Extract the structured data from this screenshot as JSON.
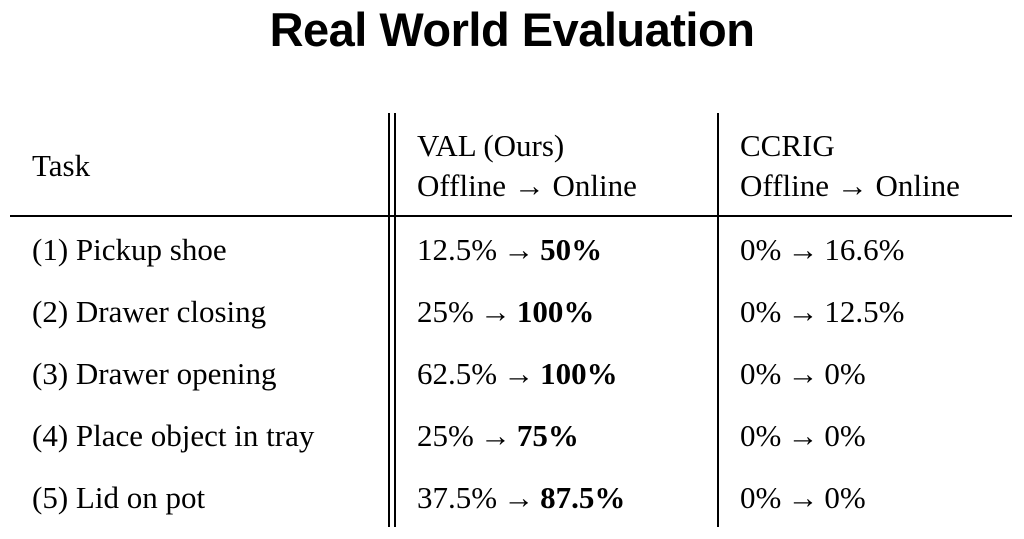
{
  "title": "Real World Evaluation",
  "table": {
    "header": {
      "task": "Task",
      "val_line1": "VAL  (Ours)",
      "val_line2": "Offline → Online",
      "ccrig_line1": "CCRIG",
      "ccrig_line2": "Offline → Online"
    },
    "arrow": "→",
    "rows": [
      {
        "task": "(1) Pickup shoe",
        "val_off": "12.5%",
        "val_on": "50%",
        "ccrig_off": "0%",
        "ccrig_on": "16.6%"
      },
      {
        "task": "(2) Drawer closing",
        "val_off": "25%",
        "val_on": "100%",
        "ccrig_off": "0%",
        "ccrig_on": "12.5%"
      },
      {
        "task": "(3) Drawer opening",
        "val_off": "62.5%",
        "val_on": "100%",
        "ccrig_off": "0%",
        "ccrig_on": "0%"
      },
      {
        "task": "(4) Place object in tray",
        "val_off": "25%",
        "val_on": "75%",
        "ccrig_off": "0%",
        "ccrig_on": "0%"
      },
      {
        "task": "(5) Lid on pot",
        "val_off": "37.5%",
        "val_on": "87.5%",
        "ccrig_off": "0%",
        "ccrig_on": "0%"
      }
    ]
  }
}
